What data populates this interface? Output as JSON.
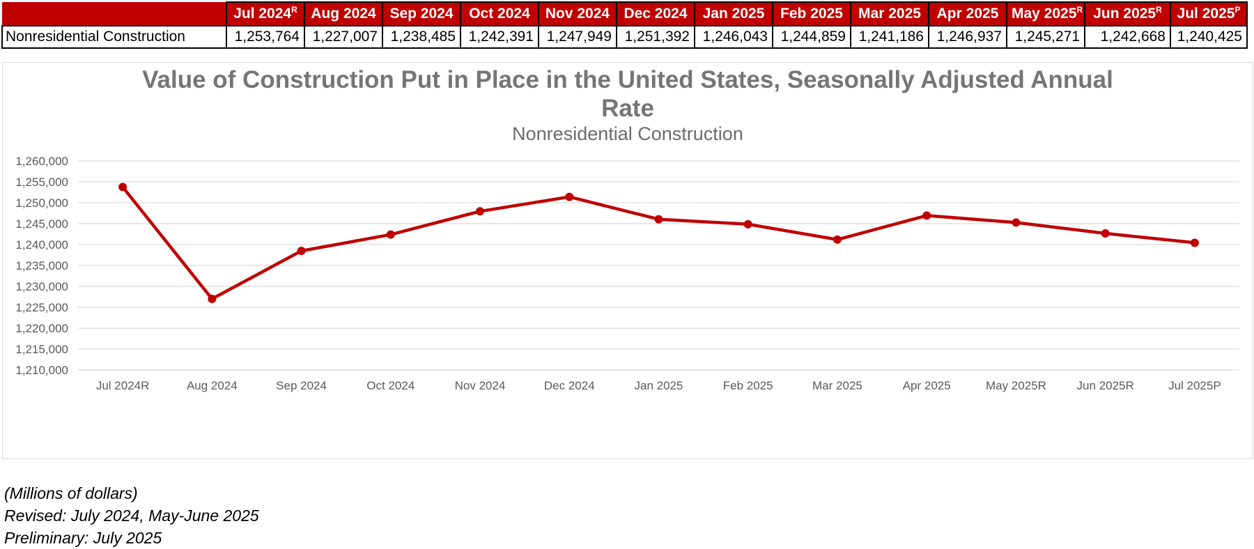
{
  "table": {
    "months": [
      {
        "label": "Jul 2024",
        "sup": "R"
      },
      {
        "label": "Aug 2024",
        "sup": ""
      },
      {
        "label": "Sep 2024",
        "sup": ""
      },
      {
        "label": "Oct 2024",
        "sup": ""
      },
      {
        "label": "Nov 2024",
        "sup": ""
      },
      {
        "label": "Dec 2024",
        "sup": ""
      },
      {
        "label": "Jan 2025",
        "sup": ""
      },
      {
        "label": "Feb 2025",
        "sup": ""
      },
      {
        "label": "Mar 2025",
        "sup": ""
      },
      {
        "label": "Apr 2025",
        "sup": ""
      },
      {
        "label": "May 2025",
        "sup": "R"
      },
      {
        "label": "Jun 2025",
        "sup": "R"
      },
      {
        "label": "Jul 2025",
        "sup": "P"
      }
    ],
    "row_label": "Nonresidential Construction",
    "values": [
      "1,253,764",
      "1,227,007",
      "1,238,485",
      "1,242,391",
      "1,247,949",
      "1,251,392",
      "1,246,043",
      "1,244,859",
      "1,241,186",
      "1,246,937",
      "1,245,271",
      "1,242,668",
      "1,240,425"
    ]
  },
  "chart_data": {
    "type": "line",
    "title": "Value of Construction Put in Place in the United States, Seasonally Adjusted Annual Rate",
    "title_lines": [
      "Value of Construction Put in Place in the United States, Seasonally Adjusted Annual",
      "Rate"
    ],
    "subtitle": "Nonresidential Construction",
    "xlabel": "",
    "ylabel": "",
    "categories": [
      "Jul 2024R",
      "Aug 2024",
      "Sep 2024",
      "Oct 2024",
      "Nov 2024",
      "Dec 2024",
      "Jan 2025",
      "Feb 2025",
      "Mar 2025",
      "Apr 2025",
      "May 2025R",
      "Jun 2025R",
      "Jul 2025P"
    ],
    "series": [
      {
        "values": [
          1253764,
          1227007,
          1238485,
          1242391,
          1247949,
          1251392,
          1246043,
          1244859,
          1241186,
          1246937,
          1245271,
          1242668,
          1240425
        ]
      }
    ],
    "ylim": [
      1210000,
      1260000
    ],
    "ytick_step": 5000,
    "ytick_labels": [
      "1,210,000",
      "1,215,000",
      "1,220,000",
      "1,225,000",
      "1,230,000",
      "1,235,000",
      "1,240,000",
      "1,245,000",
      "1,250,000",
      "1,255,000",
      "1,260,000"
    ],
    "grid": "horizontal",
    "legend": "none",
    "line_color": "#c00000",
    "grid_color": "#d9d9d9"
  },
  "notes": {
    "units": "(Millions of dollars)",
    "revised": "Revised: July 2024, May-June 2025",
    "preliminary": "Preliminary: July 2025"
  }
}
